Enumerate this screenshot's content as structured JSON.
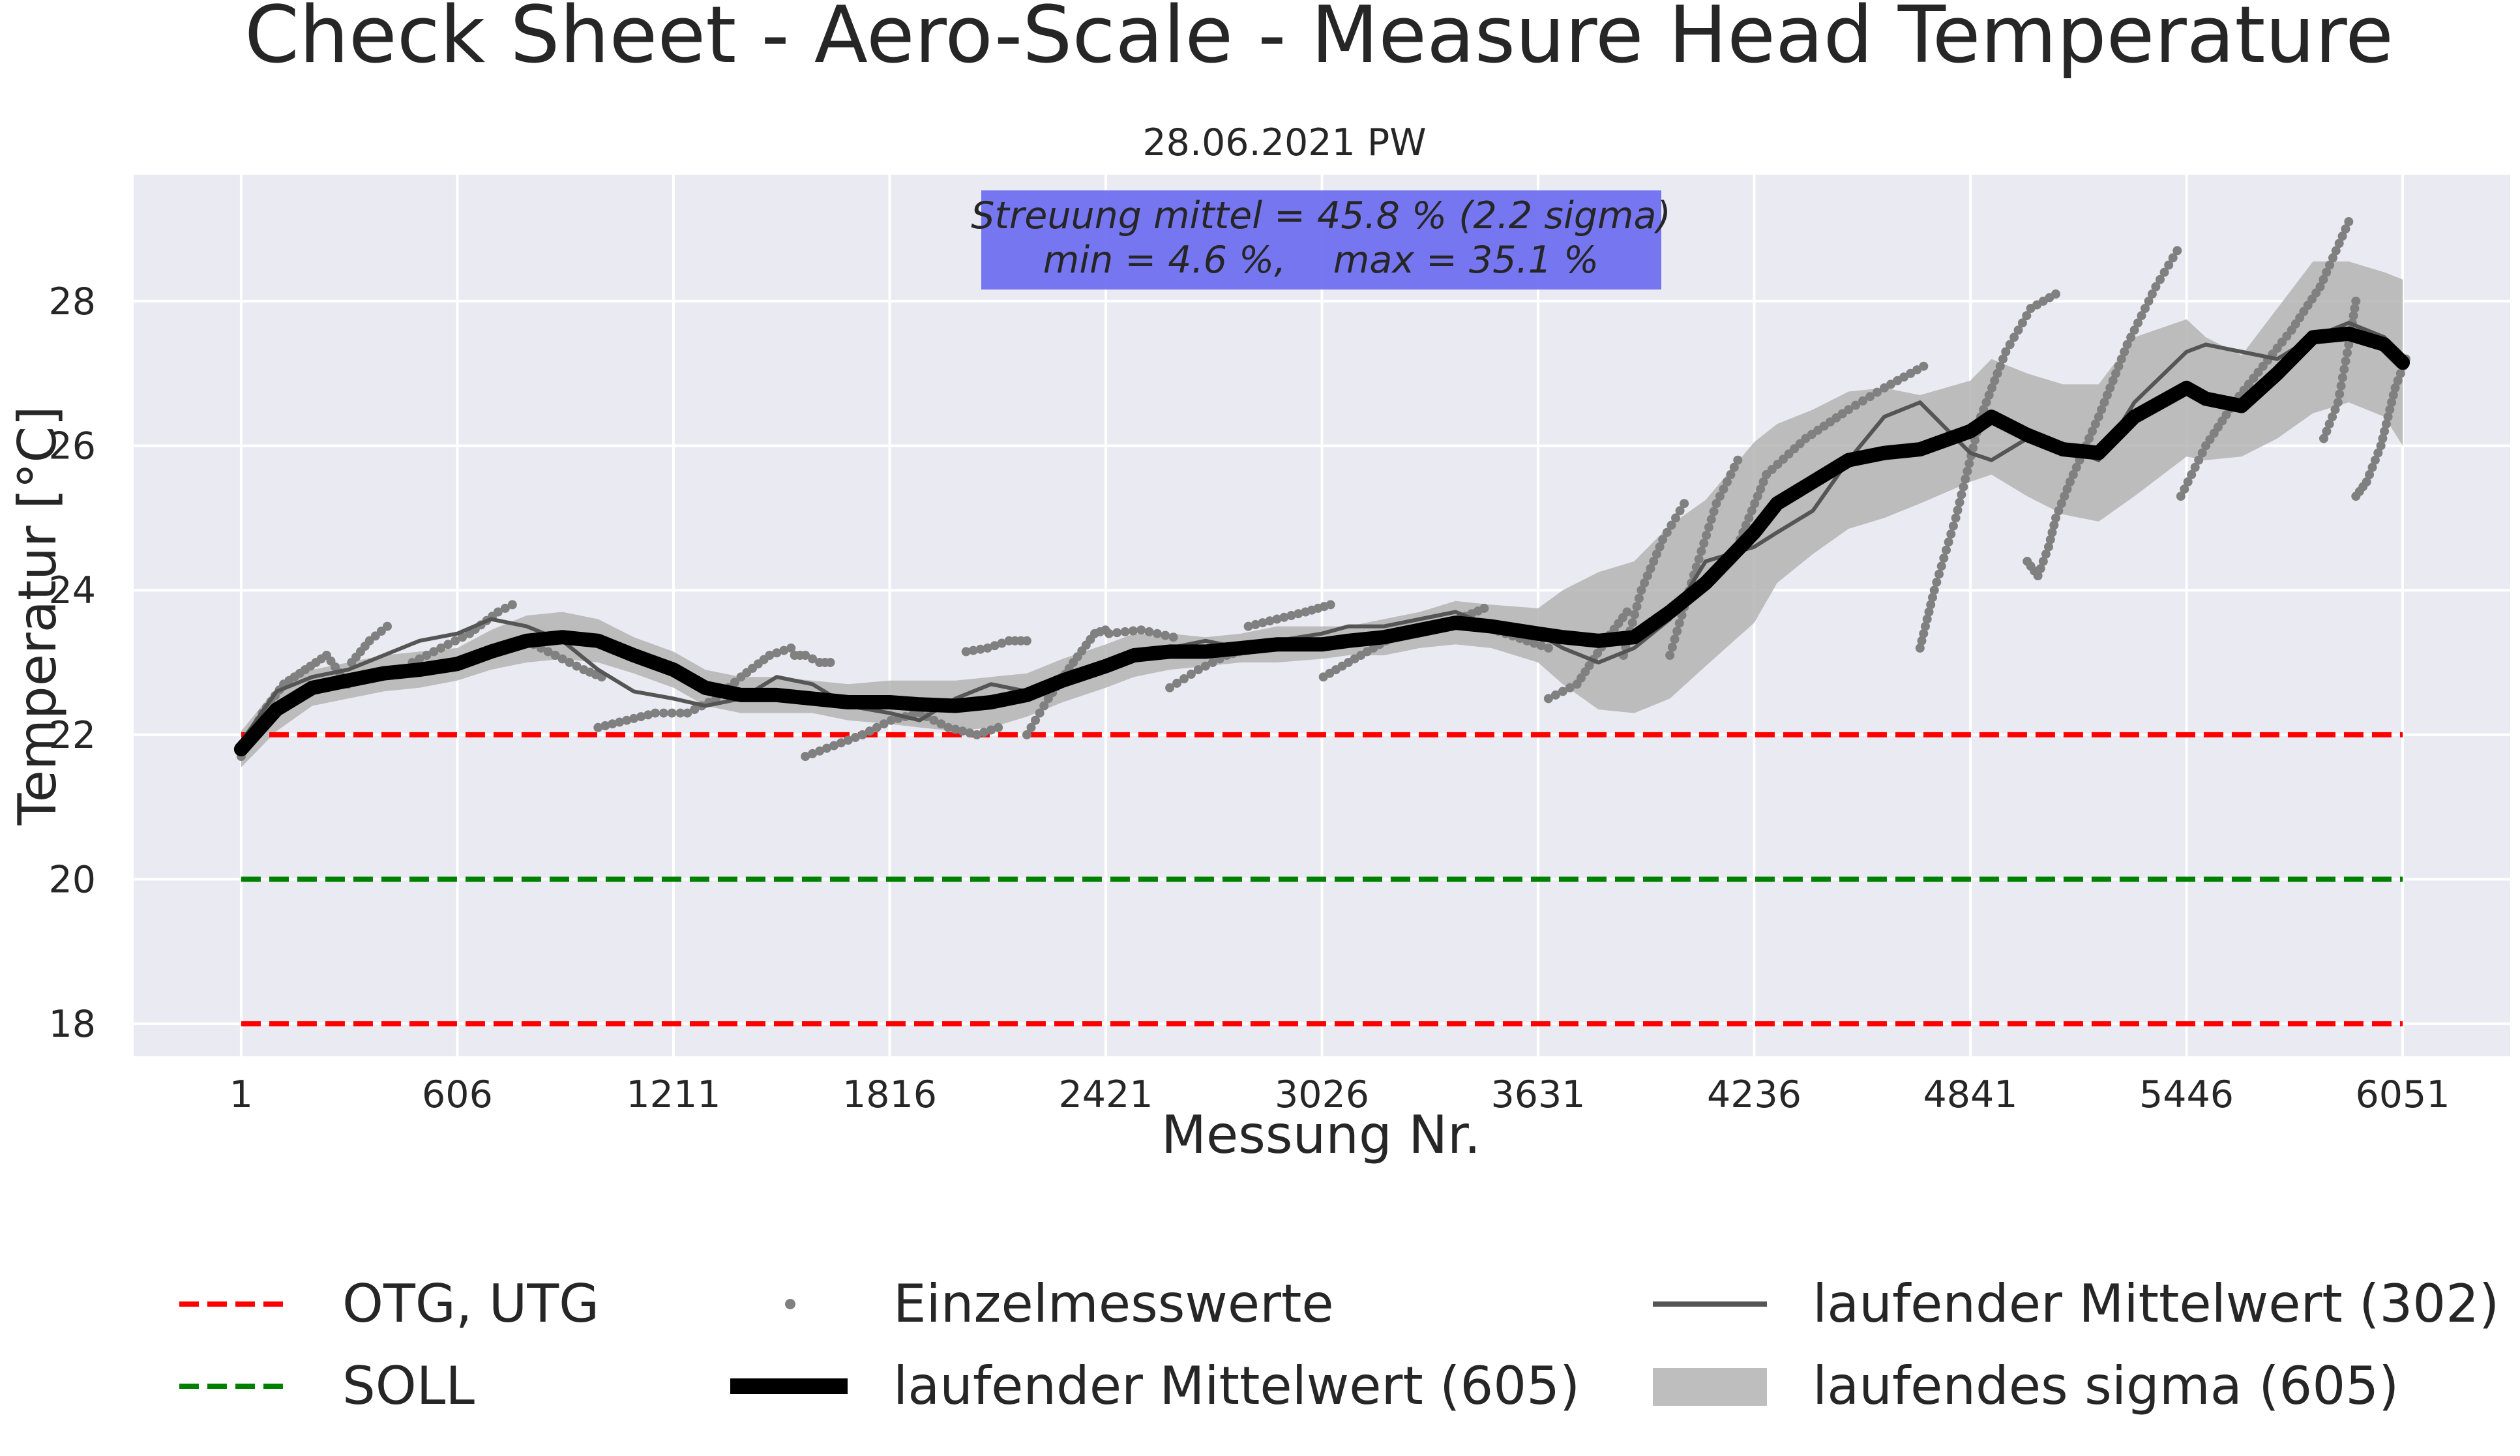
{
  "chart_data": {
    "type": "line",
    "title": "Check Sheet - Aero-Scale - Measure Head Temperature",
    "subtitle": "28.06.2021 PW",
    "xlabel": "Messung Nr.",
    "ylabel": "Temperatur [°C]",
    "xlim": [
      -300,
      6352
    ],
    "ylim": [
      17.55,
      29.75
    ],
    "x_ticks": [
      1,
      606,
      1211,
      1816,
      2421,
      3026,
      3631,
      4236,
      4841,
      5446,
      6051
    ],
    "y_ticks": [
      18,
      20,
      22,
      24,
      26,
      28
    ],
    "grid": true,
    "annotation": {
      "line1": "Streuung mittel = 45.8 % (2.2 sigma)",
      "line2": "min = 4.6 %,    max = 35.1 %",
      "color": "#7070f0"
    },
    "colors": {
      "plot_background": "#eaeaf2",
      "limits": "#ff0000",
      "soll": "#008000",
      "points": "#808080",
      "mean_302": "#555555",
      "mean_605": "#000000",
      "sigma_band": "#b4b4b4"
    },
    "limits": {
      "OTG": 22,
      "UTG": 18,
      "SOLL": 20,
      "x_range": [
        1,
        6051
      ]
    },
    "series": [
      {
        "name": "laufender Mittelwert (605)",
        "x": [
          1,
          100,
          200,
          300,
          400,
          500,
          606,
          700,
          800,
          900,
          1000,
          1100,
          1211,
          1300,
          1400,
          1500,
          1600,
          1700,
          1816,
          1900,
          2000,
          2100,
          2200,
          2300,
          2421,
          2500,
          2600,
          2700,
          2800,
          2900,
          3026,
          3100,
          3200,
          3300,
          3400,
          3500,
          3631,
          3700,
          3800,
          3900,
          4000,
          4100,
          4236,
          4300,
          4400,
          4500,
          4600,
          4700,
          4841,
          4900,
          5000,
          5100,
          5200,
          5300,
          5446,
          5500,
          5600,
          5700,
          5800,
          5900,
          6000,
          6051
        ],
        "y": [
          21.8,
          22.35,
          22.65,
          22.75,
          22.85,
          22.9,
          22.98,
          23.15,
          23.3,
          23.35,
          23.3,
          23.1,
          22.9,
          22.65,
          22.55,
          22.55,
          22.5,
          22.45,
          22.45,
          22.42,
          22.4,
          22.45,
          22.55,
          22.75,
          22.95,
          23.1,
          23.15,
          23.15,
          23.2,
          23.25,
          23.25,
          23.3,
          23.35,
          23.45,
          23.55,
          23.5,
          23.4,
          23.35,
          23.3,
          23.35,
          23.7,
          24.1,
          24.8,
          25.2,
          25.5,
          25.8,
          25.9,
          25.95,
          26.2,
          26.4,
          26.15,
          25.95,
          25.9,
          26.4,
          26.8,
          26.65,
          26.55,
          27.0,
          27.5,
          27.55,
          27.4,
          27.15
        ]
      },
      {
        "name": "laufender Mittelwert (302)",
        "x": [
          1,
          100,
          200,
          300,
          400,
          500,
          606,
          700,
          800,
          900,
          1000,
          1100,
          1211,
          1300,
          1400,
          1500,
          1600,
          1700,
          1816,
          1900,
          2000,
          2100,
          2200,
          2300,
          2421,
          2500,
          2600,
          2700,
          2800,
          2900,
          3026,
          3100,
          3200,
          3300,
          3400,
          3500,
          3631,
          3700,
          3800,
          3900,
          4000,
          4100,
          4236,
          4300,
          4400,
          4500,
          4600,
          4700,
          4841,
          4900,
          5000,
          5100,
          5200,
          5300,
          5446,
          5500,
          5600,
          5700,
          5800,
          5900,
          6000,
          6051
        ],
        "y": [
          21.9,
          22.6,
          22.8,
          22.9,
          23.1,
          23.3,
          23.4,
          23.6,
          23.5,
          23.3,
          22.9,
          22.6,
          22.5,
          22.4,
          22.5,
          22.8,
          22.7,
          22.4,
          22.3,
          22.2,
          22.5,
          22.7,
          22.6,
          22.8,
          23.0,
          23.1,
          23.2,
          23.3,
          23.2,
          23.3,
          23.4,
          23.5,
          23.5,
          23.6,
          23.7,
          23.5,
          23.4,
          23.2,
          23.0,
          23.2,
          23.6,
          24.4,
          24.6,
          24.8,
          25.1,
          25.8,
          26.4,
          26.6,
          25.9,
          25.8,
          26.1,
          26.0,
          25.8,
          26.6,
          27.3,
          27.4,
          27.3,
          27.2,
          27.5,
          27.7,
          27.5,
          27.2
        ]
      },
      {
        "name": "laufendes sigma (605)",
        "x": [
          1,
          100,
          200,
          300,
          400,
          500,
          606,
          700,
          800,
          900,
          1000,
          1100,
          1211,
          1300,
          1400,
          1500,
          1600,
          1700,
          1816,
          1900,
          2000,
          2100,
          2200,
          2300,
          2421,
          2500,
          2600,
          2700,
          2800,
          2900,
          3026,
          3100,
          3200,
          3300,
          3400,
          3500,
          3631,
          3700,
          3800,
          3900,
          4000,
          4100,
          4236,
          4300,
          4400,
          4500,
          4600,
          4700,
          4841,
          4900,
          5000,
          5100,
          5200,
          5300,
          5446,
          5500,
          5600,
          5700,
          5800,
          5900,
          6000,
          6051
        ],
        "lower": [
          21.55,
          22.05,
          22.4,
          22.5,
          22.6,
          22.65,
          22.75,
          22.9,
          23.0,
          23.05,
          23.0,
          22.85,
          22.65,
          22.4,
          22.3,
          22.3,
          22.3,
          22.2,
          22.15,
          22.1,
          22.05,
          22.1,
          22.25,
          22.45,
          22.65,
          22.8,
          22.9,
          22.95,
          23.0,
          23.0,
          23.05,
          23.1,
          23.1,
          23.2,
          23.25,
          23.2,
          23.0,
          22.7,
          22.35,
          22.3,
          22.5,
          22.95,
          23.55,
          24.1,
          24.5,
          24.85,
          25.0,
          25.2,
          25.5,
          25.6,
          25.3,
          25.05,
          24.95,
          25.3,
          25.85,
          25.8,
          25.85,
          26.1,
          26.45,
          26.6,
          26.4,
          26.0
        ],
        "upper": [
          22.05,
          22.65,
          22.9,
          23.0,
          23.1,
          23.15,
          23.2,
          23.45,
          23.65,
          23.7,
          23.6,
          23.35,
          23.15,
          22.9,
          22.8,
          22.8,
          22.75,
          22.7,
          22.75,
          22.75,
          22.75,
          22.8,
          22.85,
          23.05,
          23.25,
          23.4,
          23.4,
          23.35,
          23.4,
          23.5,
          23.5,
          23.5,
          23.6,
          23.7,
          23.85,
          23.8,
          23.75,
          24.0,
          24.25,
          24.4,
          24.9,
          25.25,
          26.05,
          26.3,
          26.5,
          26.75,
          26.8,
          26.7,
          26.9,
          27.2,
          27.0,
          26.85,
          26.85,
          27.5,
          27.75,
          27.5,
          27.25,
          27.9,
          28.55,
          28.55,
          28.4,
          28.3
        ]
      },
      {
        "name": "Einzelmesswerte",
        "segments": [
          {
            "x": [
              1,
              60,
              120,
              180,
              240,
              300
            ],
            "y": [
              21.7,
              22.3,
              22.7,
              22.9,
              23.1,
              22.7
            ]
          },
          {
            "x": [
              310,
              360,
              410
            ],
            "y": [
              23.0,
              23.3,
              23.5
            ]
          },
          {
            "x": [
              480,
              560,
              640,
              720,
              760
            ],
            "y": [
              23.0,
              23.2,
              23.4,
              23.7,
              23.8
            ]
          },
          {
            "x": [
              800,
              880,
              960,
              1010
            ],
            "y": [
              23.3,
              23.1,
              22.9,
              22.8
            ]
          },
          {
            "x": [
              1000,
              1080,
              1160,
              1230
            ],
            "y": [
              22.1,
              22.2,
              22.3,
              22.3
            ]
          },
          {
            "x": [
              1250,
              1330,
              1400,
              1480,
              1540
            ],
            "y": [
              22.3,
              22.5,
              22.8,
              23.1,
              23.2
            ]
          },
          {
            "x": [
              1550,
              1580,
              1620,
              1650
            ],
            "y": [
              23.1,
              23.1,
              23.0,
              23.0
            ]
          },
          {
            "x": [
              1580,
              1660,
              1740,
              1820,
              1900,
              1980,
              2060,
              2120
            ],
            "y": [
              21.7,
              21.85,
              22.0,
              22.2,
              22.3,
              22.1,
              22.0,
              22.1
            ]
          },
          {
            "x": [
              2030,
              2090,
              2150,
              2200
            ],
            "y": [
              23.15,
              23.2,
              23.3,
              23.3
            ]
          },
          {
            "x": [
              2200,
              2260,
              2330,
              2390,
              2420
            ],
            "y": [
              22.0,
              22.5,
              23.0,
              23.4,
              23.45
            ]
          },
          {
            "x": [
              2430,
              2520,
              2610
            ],
            "y": [
              23.4,
              23.45,
              23.35
            ]
          },
          {
            "x": [
              2600,
              2680,
              2760,
              2830
            ],
            "y": [
              22.65,
              22.9,
              23.1,
              23.2
            ]
          },
          {
            "x": [
              2820,
              2900,
              2980,
              3050
            ],
            "y": [
              23.5,
              23.6,
              23.7,
              23.8
            ]
          },
          {
            "x": [
              3030,
              3100,
              3170,
              3240
            ],
            "y": [
              22.8,
              23.0,
              23.2,
              23.4
            ]
          },
          {
            "x": [
              3250,
              3330,
              3410,
              3480
            ],
            "y": [
              23.4,
              23.5,
              23.6,
              23.75
            ]
          },
          {
            "x": [
              3480,
              3540,
              3600,
              3660
            ],
            "y": [
              23.5,
              23.4,
              23.3,
              23.2
            ]
          },
          {
            "x": [
              3660,
              3740,
              3820,
              3880
            ],
            "y": [
              22.5,
              22.7,
              23.3,
              23.7
            ]
          },
          {
            "x": [
              3870,
              3920,
              3980,
              4040
            ],
            "y": [
              23.1,
              24.0,
              24.7,
              25.2
            ]
          },
          {
            "x": [
              4000,
              4060,
              4130,
              4190
            ],
            "y": [
              23.1,
              24.1,
              25.2,
              25.8
            ]
          },
          {
            "x": [
              4180,
              4270,
              4380,
              4500,
              4600,
              4710
            ],
            "y": [
              24.5,
              25.6,
              26.1,
              26.5,
              26.8,
              27.1
            ]
          },
          {
            "x": [
              4700,
              4740,
              4800,
              4870,
              4940,
              5010,
              5080
            ],
            "y": [
              23.2,
              24.0,
              25.0,
              26.4,
              27.3,
              27.9,
              28.1
            ]
          },
          {
            "x": [
              5000,
              5030,
              5060,
              5080,
              5120,
              5200,
              5280,
              5360,
              5420
            ],
            "y": [
              24.4,
              24.2,
              24.6,
              25.0,
              25.5,
              26.4,
              27.4,
              28.2,
              28.7
            ]
          },
          {
            "x": [
              5430,
              5500,
              5580,
              5660,
              5740,
              5820,
              5900
            ],
            "y": [
              25.3,
              26.0,
              26.6,
              27.1,
              27.6,
              28.2,
              29.1
            ]
          },
          {
            "x": [
              5830,
              5870,
              5900,
              5920
            ],
            "y": [
              26.1,
              26.6,
              27.4,
              28.0
            ]
          },
          {
            "x": [
              5920,
              5950,
              5990,
              6030,
              6060
            ],
            "y": [
              25.3,
              25.5,
              26.0,
              26.8,
              27.2
            ]
          }
        ]
      }
    ],
    "legend": {
      "placement": "bottom",
      "entries": [
        {
          "label": "OTG, UTG",
          "symbol": "dashed-red"
        },
        {
          "label": "Einzelmesswerte",
          "symbol": "dot-gray"
        },
        {
          "label": "laufender Mittelwert (302)",
          "symbol": "line-gray"
        },
        {
          "label": "SOLL",
          "symbol": "dashed-green"
        },
        {
          "label": "laufender Mittelwert (605)",
          "symbol": "line-black-thick"
        },
        {
          "label": "laufendes sigma (605)",
          "symbol": "patch-gray"
        }
      ]
    }
  }
}
